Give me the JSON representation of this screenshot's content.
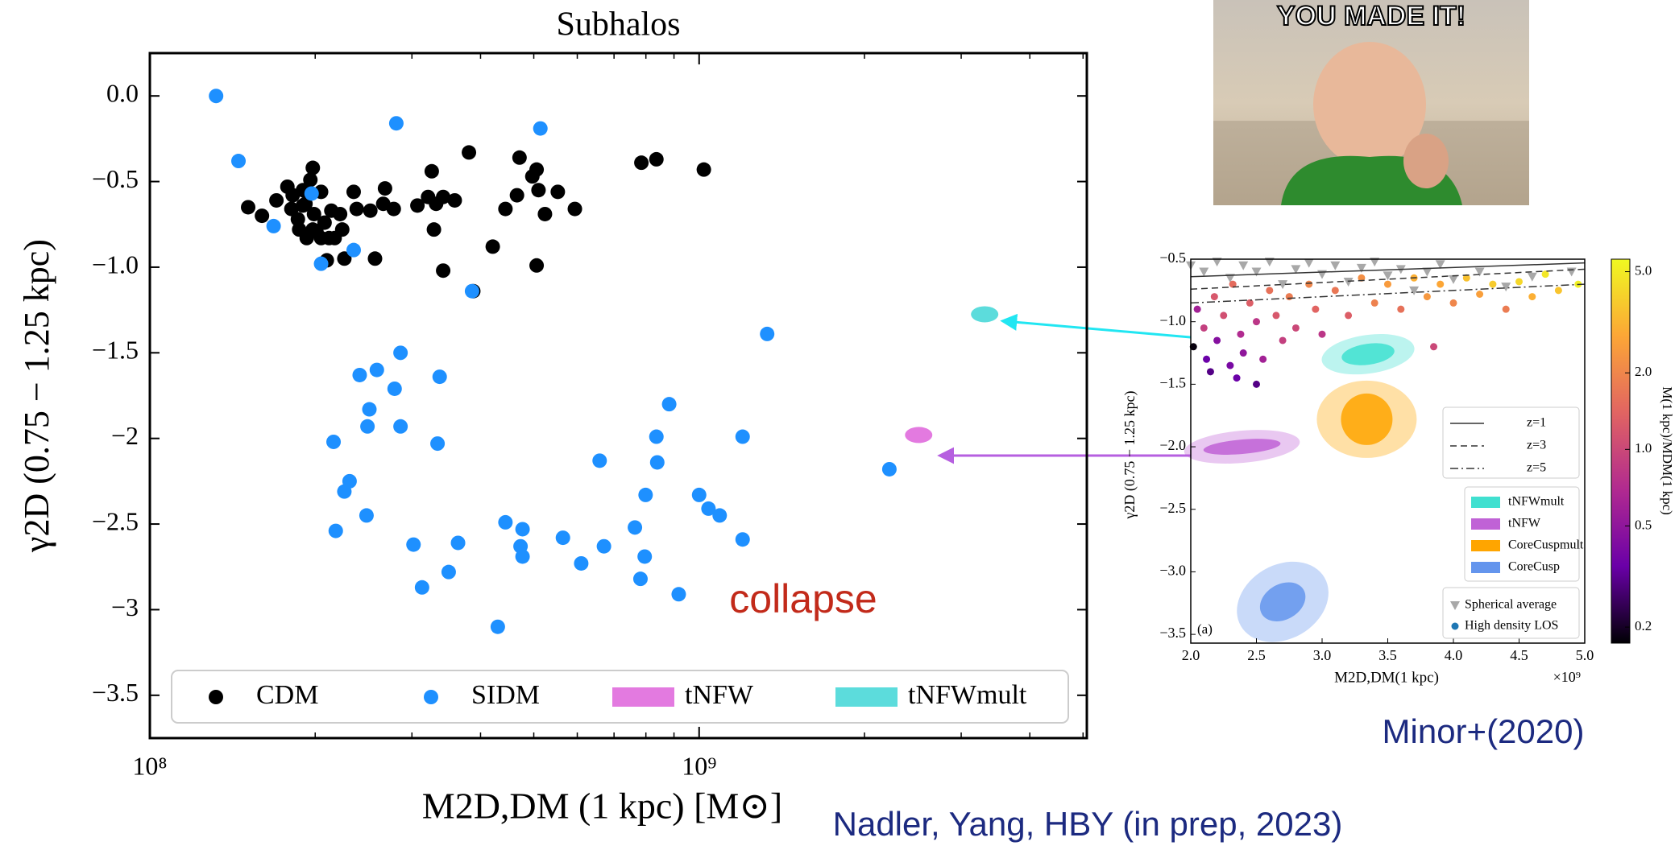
{
  "chart_data": [
    {
      "type": "scatter",
      "title": "Subhalos",
      "xlabel": "M2D,DM (1 kpc) [M⊙]",
      "ylabel": "γ2D (0.75 − 1.25 kpc)",
      "xscale": "log",
      "xlim": [
        100000000.0,
        5080000000.0
      ],
      "ylim": [
        -3.75,
        0.25
      ],
      "xticks": [
        {
          "value": 100000000.0,
          "label": "10⁸"
        },
        {
          "value": 1000000000.0,
          "label": "10⁹"
        }
      ],
      "xminorticks": [
        200000000.0,
        300000000.0,
        400000000.0,
        500000000.0,
        600000000.0,
        700000000.0,
        800000000.0,
        900000000.0,
        2000000000.0,
        3000000000.0,
        4000000000.0,
        5000000000.0
      ],
      "yticks": [
        {
          "value": 0,
          "label": "0.0"
        },
        {
          "value": -0.5,
          "label": "−0.5"
        },
        {
          "value": -1,
          "label": "−1.0"
        },
        {
          "value": -1.5,
          "label": "−1.5"
        },
        {
          "value": -2,
          "label": "−2"
        },
        {
          "value": -2.5,
          "label": "−2.5"
        },
        {
          "value": -3,
          "label": "−3"
        },
        {
          "value": -3.5,
          "label": "−3.5"
        }
      ],
      "legend": "lower center",
      "annotation": "collapse",
      "series": [
        {
          "name": "CDM",
          "color": "#000000",
          "marker": "circle",
          "x": [
            151000000.0,
            160000000.0,
            170000000.0,
            178000000.0,
            181000000.0,
            186000000.0,
            190000000.0,
            192000000.0,
            196000000.0,
            198000000.0,
            199000000.0,
            201000000.0,
            205000000.0,
            208000000.0,
            210000000.0,
            212000000.0,
            217000000.0,
            222000000.0,
            224000000.0,
            226000000.0,
            235000000.0,
            198000000.0,
            187000000.0,
            193000000.0,
            205000000.0,
            257000000.0,
            252000000.0,
            268000000.0,
            266000000.0,
            278000000.0,
            307000000.0,
            321000000.0,
            326000000.0,
            332000000.0,
            329000000.0,
            342000000.0,
            359000000.0,
            342000000.0,
            381000000.0,
            388000000.0,
            421000000.0,
            444000000.0,
            471000000.0,
            466000000.0,
            497000000.0,
            506000000.0,
            510000000.0,
            524000000.0,
            506000000.0,
            553000000.0,
            594000000.0,
            785000000.0,
            836000000.0,
            1020000000.0,
            190000000.0,
            182000000.0,
            214000000.0,
            238000000.0
          ],
          "y": [
            -0.65,
            -0.7,
            -0.61,
            -0.53,
            -0.66,
            -0.72,
            -0.55,
            -0.63,
            -0.49,
            -0.42,
            -0.69,
            -0.79,
            -0.56,
            -0.74,
            -0.96,
            -0.83,
            -0.83,
            -0.69,
            -0.78,
            -0.95,
            -0.56,
            -0.78,
            -0.78,
            -0.83,
            -0.83,
            -0.95,
            -0.67,
            -0.54,
            -0.63,
            -0.66,
            -0.64,
            -0.59,
            -0.44,
            -0.63,
            -0.78,
            -0.59,
            -0.61,
            -1.02,
            -0.33,
            -1.14,
            -0.88,
            -0.66,
            -0.36,
            -0.58,
            -0.47,
            -0.43,
            -0.55,
            -0.69,
            -0.99,
            -0.56,
            -0.66,
            -0.39,
            -0.37,
            -0.43,
            -0.64,
            -0.58,
            -0.67,
            -0.66
          ]
        },
        {
          "name": "SIDM",
          "color": "#1e90ff",
          "marker": "circle",
          "x": [
            132000000.0,
            145000000.0,
            281000000.0,
            514000000.0,
            168000000.0,
            197000000.0,
            235000000.0,
            205000000.0,
            386000000.0,
            1330000000.0,
            286000000.0,
            241000000.0,
            259000000.0,
            337000000.0,
            279000000.0,
            251000000.0,
            286000000.0,
            216000000.0,
            249000000.0,
            334000000.0,
            882000000.0,
            659000000.0,
            836000000.0,
            839000000.0,
            1200000000.0,
            231000000.0,
            226000000.0,
            799000000.0,
            1000000000.0,
            1040000000.0,
            1090000000.0,
            248000000.0,
            218000000.0,
            444000000.0,
            477000000.0,
            302000000.0,
            364000000.0,
            473000000.0,
            477000000.0,
            565000000.0,
            671000000.0,
            610000000.0,
            764000000.0,
            1200000000.0,
            313000000.0,
            350000000.0,
            796000000.0,
            918000000.0,
            430000000.0,
            2220000000.0,
            782000000.0
          ],
          "y": [
            0.0,
            -0.38,
            -0.16,
            -0.19,
            -0.76,
            -0.57,
            -0.9,
            -0.98,
            -1.14,
            -1.39,
            -1.5,
            -1.63,
            -1.6,
            -1.64,
            -1.71,
            -1.83,
            -1.93,
            -2.02,
            -1.93,
            -2.03,
            -1.8,
            -2.13,
            -1.99,
            -2.14,
            -1.99,
            -2.25,
            -2.31,
            -2.33,
            -2.33,
            -2.41,
            -2.45,
            -2.45,
            -2.54,
            -2.49,
            -2.53,
            -2.62,
            -2.61,
            -2.63,
            -2.69,
            -2.58,
            -2.63,
            -2.73,
            -2.52,
            -2.59,
            -2.87,
            -2.78,
            -2.69,
            -2.91,
            -3.1,
            -2.18,
            -2.82
          ]
        },
        {
          "name": "tNFW",
          "color": "#e37ae0",
          "marker": "ellipse",
          "x": [
            2510000000.0
          ],
          "y": [
            -1.98
          ]
        },
        {
          "name": "tNFWmult",
          "color": "#5cdcdc",
          "marker": "ellipse",
          "x": [
            3310000000.0
          ],
          "y": [
            -1.275
          ]
        }
      ]
    },
    {
      "type": "scatter",
      "xlabel": "M2D,DM(1 kpc)",
      "x_offset_label": "×10⁹",
      "ylabel": "γ2D (0.75 − 1.25 kpc)",
      "panel_label": "(a)",
      "xlim": [
        2,
        5
      ],
      "ylim": [
        -3.57,
        -0.5
      ],
      "xticks": [
        {
          "value": 2,
          "label": "2.0"
        },
        2.5,
        {
          "value": 3,
          "label": "3.0"
        },
        3.5,
        {
          "value": 4,
          "label": "4.0"
        },
        4.5,
        {
          "value": 5,
          "label": "5.0"
        }
      ],
      "yticks": [
        {
          "value": -0.5,
          "label": "−0.5"
        },
        {
          "value": -1,
          "label": "−1.0"
        },
        {
          "value": -1.5,
          "label": "−1.5"
        },
        {
          "value": -2,
          "label": "−2.0"
        },
        {
          "value": -2.5,
          "label": "−2.5"
        },
        {
          "value": -3,
          "label": "−3.0"
        },
        {
          "value": -3.5,
          "label": "−3.5"
        }
      ],
      "colorbar": {
        "label": "M(1 kpc)/MDM(1 kpc)",
        "scale": "log",
        "lim": [
          0.173,
          5.6
        ],
        "ticks": [
          0.2,
          0.5,
          {
            "value": 1,
            "label": "1.0"
          },
          {
            "value": 2,
            "label": "2.0"
          },
          {
            "value": 5,
            "label": "5.0"
          }
        ],
        "colormap": [
          "#000004",
          "#6a00a8",
          "#b12a90",
          "#e16462",
          "#fca636",
          "#f0f921"
        ]
      },
      "lines": [
        {
          "name": "z=1",
          "dash": "solid",
          "color": "#333333",
          "x": [
            2,
            5
          ],
          "y": [
            -0.64,
            -0.53
          ]
        },
        {
          "name": "z=3",
          "dash": "dashed",
          "color": "#333333",
          "x": [
            2,
            5
          ],
          "y": [
            -0.74,
            -0.58
          ]
        },
        {
          "name": "z=5",
          "dash": "dashdot",
          "color": "#333333",
          "x": [
            2,
            5
          ],
          "y": [
            -0.85,
            -0.7
          ]
        }
      ],
      "regions": [
        {
          "name": "tNFWmult",
          "color": "#40e0d0",
          "x": 3.35,
          "y": -1.26
        },
        {
          "name": "tNFW",
          "color": "#c062d6",
          "x": 2.39,
          "y": -2.0
        },
        {
          "name": "CoreCuspmult",
          "color": "#ffa500",
          "x": 3.34,
          "y": -1.78
        },
        {
          "name": "CoreCusp",
          "color": "#6495ed",
          "x": 2.7,
          "y": -3.24
        }
      ],
      "series": [
        {
          "name": "Spherical average",
          "color": "#a8a8a8",
          "marker": "triangle",
          "x": [
            2.0,
            2.1,
            2.2,
            2.3,
            2.4,
            2.5,
            2.6,
            2.7,
            2.8,
            2.9,
            3.0,
            3.1,
            3.2,
            3.3,
            3.4,
            3.5,
            3.6,
            3.7,
            3.8,
            3.9,
            4.0,
            4.2,
            4.4,
            4.6,
            4.9
          ],
          "y": [
            -0.55,
            -0.6,
            -0.52,
            -0.65,
            -0.55,
            -0.6,
            -0.52,
            -0.7,
            -0.58,
            -0.53,
            -0.62,
            -0.55,
            -0.68,
            -0.57,
            -0.52,
            -0.63,
            -0.58,
            -0.75,
            -0.6,
            -0.54,
            -0.66,
            -0.6,
            -0.72,
            -0.64,
            -0.6
          ]
        },
        {
          "name": "High density LOS",
          "color": "#1f77b4",
          "marker": "circle",
          "x": [
            2.02,
            2.05,
            2.1,
            2.12,
            2.18,
            2.2,
            2.25,
            2.3,
            2.32,
            2.38,
            2.4,
            2.45,
            2.5,
            2.55,
            2.6,
            2.65,
            2.7,
            2.75,
            2.8,
            2.9,
            2.95,
            3.0,
            3.1,
            3.2,
            3.3,
            3.4,
            3.5,
            3.6,
            3.7,
            3.8,
            3.85,
            3.9,
            4.0,
            4.1,
            4.2,
            4.3,
            4.4,
            4.5,
            4.6,
            4.7,
            4.8,
            4.95,
            2.15,
            2.35,
            2.5
          ],
          "y": [
            -1.2,
            -0.9,
            -1.05,
            -1.3,
            -0.8,
            -1.15,
            -0.95,
            -1.35,
            -0.7,
            -1.1,
            -1.25,
            -0.85,
            -1.0,
            -1.3,
            -0.75,
            -0.95,
            -1.15,
            -0.8,
            -1.05,
            -0.7,
            -0.9,
            -1.1,
            -0.75,
            -0.95,
            -0.65,
            -0.85,
            -0.7,
            -0.9,
            -0.65,
            -0.8,
            -1.2,
            -0.7,
            -0.85,
            -0.65,
            -0.78,
            -0.7,
            -0.9,
            -0.68,
            -0.8,
            -0.62,
            -0.75,
            -0.7,
            -1.4,
            -1.45,
            -1.5
          ],
          "c": [
            0.18,
            0.6,
            0.9,
            0.35,
            1.2,
            0.45,
            1.1,
            0.4,
            1.5,
            0.7,
            0.5,
            1.3,
            0.8,
            0.6,
            1.6,
            1.2,
            0.9,
            1.8,
            1.0,
            2.0,
            1.4,
            0.8,
            1.7,
            1.3,
            2.2,
            1.9,
            2.5,
            1.6,
            3.0,
            2.4,
            1.0,
            2.8,
            2.0,
            3.5,
            2.6,
            3.8,
            1.8,
            4.2,
            3.0,
            4.8,
            3.6,
            5.2,
            0.3,
            0.35,
            0.3
          ]
        }
      ]
    }
  ],
  "credits": {
    "main": "Nadler, Yang, HBY (in prep, 2023)",
    "inset": "Minor+(2020)"
  },
  "image": {
    "caption": "YOU MADE IT!"
  }
}
